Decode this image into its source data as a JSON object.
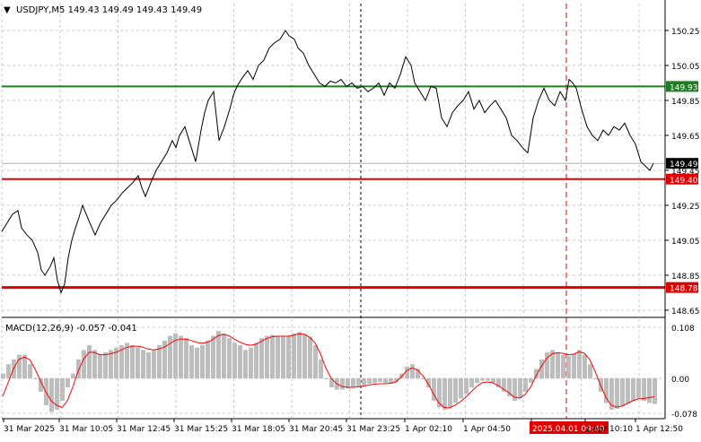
{
  "header": {
    "arrow_glyph": "▼",
    "symbol_info": "USDJPY,M5  149.43 149.49 149.43 149.49"
  },
  "indicator": {
    "label": "MACD(12,26,9) -0.057 -0.041"
  },
  "colors": {
    "background": "#ffffff",
    "grid": "#c8c8c8",
    "price_line": "#000000",
    "green_level": "#1e7d1e",
    "red_level": "#e00000",
    "macd_hist": "#bdbdbd",
    "signal_line": "#ff0000",
    "vline_black": "#000000",
    "vline_red": "#e00000",
    "current_price_bg": "#000000"
  },
  "chart_data": [
    {
      "type": "line",
      "title": "USDJPY,M5",
      "series": [
        {
          "name": "USDJPY,M5",
          "x": [
            0,
            6,
            12,
            18,
            22,
            28,
            34,
            40,
            44,
            48,
            54,
            58,
            62,
            66,
            70,
            74,
            78,
            82,
            86,
            90,
            94,
            98,
            104,
            110,
            116,
            122,
            128,
            134,
            140,
            146,
            152,
            156,
            160,
            166,
            172,
            178,
            184,
            190,
            194,
            198,
            204,
            210,
            216,
            222,
            226,
            230,
            236,
            242,
            248,
            254,
            258,
            262,
            268,
            274,
            280,
            286,
            292,
            298,
            304,
            310,
            316,
            320,
            326,
            330,
            336,
            342,
            348,
            354,
            360,
            366,
            372,
            378,
            384,
            390,
            396,
            402,
            408,
            414,
            420,
            426,
            432,
            438,
            444,
            450,
            456,
            460,
            466,
            472,
            478,
            484,
            490,
            496,
            502,
            508,
            514,
            520,
            526,
            532,
            538,
            544,
            550,
            556,
            562,
            568,
            574,
            580,
            586,
            592,
            598,
            604,
            610,
            616,
            622,
            628,
            632,
            636,
            640,
            646,
            652,
            658,
            664,
            670,
            676,
            682,
            688,
            694,
            700,
            706,
            712,
            718,
            722,
            726
          ],
          "values": [
            149.1,
            149.15,
            149.2,
            149.22,
            149.12,
            149.08,
            149.05,
            148.98,
            148.88,
            148.85,
            148.9,
            148.95,
            148.82,
            148.75,
            148.8,
            148.95,
            149.05,
            149.12,
            149.18,
            149.25,
            149.2,
            149.15,
            149.08,
            149.15,
            149.2,
            149.25,
            149.28,
            149.32,
            149.35,
            149.38,
            149.42,
            149.35,
            149.3,
            149.38,
            149.45,
            149.5,
            149.55,
            149.62,
            149.58,
            149.65,
            149.7,
            149.6,
            149.5,
            149.68,
            149.78,
            149.85,
            149.9,
            149.62,
            149.7,
            149.8,
            149.88,
            149.93,
            149.98,
            150.02,
            149.97,
            150.05,
            150.08,
            150.15,
            150.18,
            150.2,
            150.25,
            150.22,
            150.2,
            150.15,
            150.12,
            150.05,
            150.0,
            149.95,
            149.93,
            149.96,
            149.95,
            149.97,
            149.93,
            149.95,
            149.92,
            149.93,
            149.9,
            149.92,
            149.95,
            149.88,
            149.95,
            149.92,
            150.0,
            150.1,
            150.05,
            149.95,
            149.9,
            149.85,
            149.93,
            149.92,
            149.75,
            149.7,
            149.78,
            149.82,
            149.85,
            149.9,
            149.8,
            149.85,
            149.78,
            149.82,
            149.85,
            149.8,
            149.75,
            149.65,
            149.62,
            149.58,
            149.55,
            149.75,
            149.85,
            149.92,
            149.85,
            149.82,
            149.9,
            149.85,
            149.97,
            149.95,
            149.92,
            149.8,
            149.7,
            149.65,
            149.62,
            149.68,
            149.65,
            149.7,
            149.68,
            149.72,
            149.65,
            149.6,
            149.5,
            149.47,
            149.45,
            149.49
          ]
        },
        {
          "name": "MACD",
          "x": [],
          "values": []
        },
        {
          "name": "Signal",
          "x": [],
          "values": []
        }
      ],
      "levels": [
        {
          "value": 149.93,
          "label": "149.93",
          "color": "#1e7d1e"
        },
        {
          "value": 149.4,
          "label": "149.40",
          "color": "#e00000"
        },
        {
          "value": 148.78,
          "label": "148.78",
          "color": "#e00000"
        }
      ],
      "current_price": {
        "value": 149.49,
        "label": "149.49"
      },
      "ylim": [
        148.6,
        150.32
      ],
      "yticks": [
        "150.25",
        "150.05",
        "149.85",
        "149.65",
        "149.45",
        "149.25",
        "149.05",
        "148.85",
        "148.65"
      ],
      "xticks": [
        "31 Mar 2025",
        "31 Mar 10:05",
        "31 Mar 12:45",
        "31 Mar 15:25",
        "31 Mar 18:05",
        "31 Mar 20:45",
        "31 Mar 23:25",
        "1 Apr 02:10",
        "1 Apr 04:50",
        "2025.04.01 09:40",
        "1 Apr 10:10",
        "1 Apr 12:50"
      ],
      "highlight_xtick": "2025.04.01 09:40",
      "grid": true
    },
    {
      "type": "bar",
      "title": "MACD(12,26,9)",
      "series": [
        {
          "name": "MACD(12,26,9)",
          "x": [
            0,
            6,
            12,
            18,
            24,
            30,
            36,
            42,
            48,
            54,
            60,
            66,
            72,
            78,
            84,
            90,
            96,
            102,
            108,
            114,
            120,
            126,
            132,
            138,
            144,
            150,
            156,
            162,
            168,
            174,
            180,
            186,
            192,
            198,
            204,
            210,
            216,
            222,
            228,
            234,
            240,
            246,
            252,
            258,
            264,
            270,
            276,
            282,
            288,
            294,
            300,
            306,
            312,
            318,
            324,
            330,
            336,
            342,
            348,
            354,
            360,
            366,
            372,
            378,
            384,
            390,
            396,
            402,
            408,
            414,
            420,
            426,
            432,
            438,
            444,
            450,
            456,
            462,
            468,
            474,
            480,
            486,
            492,
            498,
            504,
            510,
            516,
            522,
            528,
            534,
            540,
            546,
            552,
            558,
            564,
            570,
            576,
            582,
            588,
            594,
            600,
            606,
            612,
            618,
            624,
            630,
            636,
            642,
            648,
            654,
            660,
            666,
            672,
            678,
            684,
            690,
            696,
            702,
            708,
            714,
            720,
            726
          ],
          "values": [
            0.01,
            0.03,
            0.04,
            0.05,
            0.05,
            0.03,
            0.0,
            -0.03,
            -0.06,
            -0.075,
            -0.07,
            -0.05,
            -0.02,
            0.01,
            0.04,
            0.06,
            0.07,
            0.06,
            0.05,
            0.055,
            0.06,
            0.065,
            0.07,
            0.075,
            0.07,
            0.065,
            0.06,
            0.055,
            0.06,
            0.07,
            0.08,
            0.09,
            0.095,
            0.09,
            0.085,
            0.07,
            0.065,
            0.07,
            0.08,
            0.09,
            0.1,
            0.095,
            0.085,
            0.075,
            0.07,
            0.06,
            0.065,
            0.075,
            0.085,
            0.09,
            0.092,
            0.09,
            0.088,
            0.09,
            0.095,
            0.098,
            0.094,
            0.088,
            0.07,
            0.04,
            0.0,
            -0.02,
            -0.025,
            -0.025,
            -0.022,
            -0.02,
            -0.018,
            -0.015,
            -0.012,
            -0.01,
            -0.008,
            -0.01,
            -0.012,
            -0.008,
            0.01,
            0.025,
            0.03,
            0.02,
            0.0,
            -0.02,
            -0.05,
            -0.065,
            -0.07,
            -0.065,
            -0.055,
            -0.045,
            -0.035,
            -0.02,
            -0.01,
            -0.005,
            -0.005,
            -0.01,
            -0.02,
            -0.03,
            -0.04,
            -0.05,
            -0.045,
            -0.03,
            -0.01,
            0.02,
            0.04,
            0.055,
            0.06,
            0.055,
            0.05,
            0.048,
            0.052,
            0.06,
            0.05,
            0.03,
            0.0,
            -0.03,
            -0.055,
            -0.07,
            -0.068,
            -0.062,
            -0.056,
            -0.05,
            -0.045,
            -0.05,
            -0.055,
            -0.057
          ]
        },
        {
          "name": "Signal",
          "x": [
            0,
            6,
            12,
            18,
            24,
            30,
            36,
            42,
            48,
            54,
            60,
            66,
            72,
            78,
            84,
            90,
            96,
            102,
            108,
            114,
            120,
            126,
            132,
            138,
            144,
            150,
            156,
            162,
            168,
            174,
            180,
            186,
            192,
            198,
            204,
            210,
            216,
            222,
            228,
            234,
            240,
            246,
            252,
            258,
            264,
            270,
            276,
            282,
            288,
            294,
            300,
            306,
            312,
            318,
            324,
            330,
            336,
            342,
            348,
            354,
            360,
            366,
            372,
            378,
            384,
            390,
            396,
            402,
            408,
            414,
            420,
            426,
            432,
            438,
            444,
            450,
            456,
            462,
            468,
            474,
            480,
            486,
            492,
            498,
            504,
            510,
            516,
            522,
            528,
            534,
            540,
            546,
            552,
            558,
            564,
            570,
            576,
            582,
            588,
            594,
            600,
            606,
            612,
            618,
            624,
            630,
            636,
            642,
            648,
            654,
            660,
            666,
            672,
            678,
            684,
            690,
            696,
            702,
            708,
            714,
            720,
            726
          ],
          "values": [
            -0.04,
            -0.01,
            0.02,
            0.04,
            0.045,
            0.04,
            0.02,
            -0.005,
            -0.03,
            -0.05,
            -0.06,
            -0.065,
            -0.05,
            -0.02,
            0.015,
            0.04,
            0.055,
            0.055,
            0.05,
            0.05,
            0.052,
            0.055,
            0.06,
            0.065,
            0.068,
            0.068,
            0.066,
            0.062,
            0.06,
            0.062,
            0.066,
            0.073,
            0.08,
            0.083,
            0.083,
            0.08,
            0.076,
            0.074,
            0.076,
            0.082,
            0.09,
            0.093,
            0.09,
            0.083,
            0.077,
            0.072,
            0.07,
            0.072,
            0.078,
            0.084,
            0.088,
            0.089,
            0.089,
            0.089,
            0.091,
            0.094,
            0.093,
            0.087,
            0.075,
            0.052,
            0.022,
            0.0,
            -0.012,
            -0.018,
            -0.02,
            -0.02,
            -0.019,
            -0.017,
            -0.015,
            -0.013,
            -0.012,
            -0.012,
            -0.011,
            -0.008,
            0.003,
            0.016,
            0.022,
            0.018,
            0.006,
            -0.012,
            -0.035,
            -0.055,
            -0.065,
            -0.066,
            -0.06,
            -0.052,
            -0.042,
            -0.03,
            -0.018,
            -0.01,
            -0.008,
            -0.01,
            -0.016,
            -0.024,
            -0.032,
            -0.042,
            -0.044,
            -0.036,
            -0.02,
            0.004,
            0.025,
            0.042,
            0.052,
            0.054,
            0.053,
            0.05,
            0.051,
            0.056,
            0.053,
            0.04,
            0.015,
            -0.015,
            -0.042,
            -0.06,
            -0.064,
            -0.062,
            -0.056,
            -0.05,
            -0.046,
            -0.045,
            -0.043,
            -0.041
          ]
        }
      ],
      "ylim": [
        -0.085,
        0.112
      ],
      "yticks": [
        "0.108",
        "0.00",
        "-0.078"
      ],
      "grid": true
    }
  ]
}
